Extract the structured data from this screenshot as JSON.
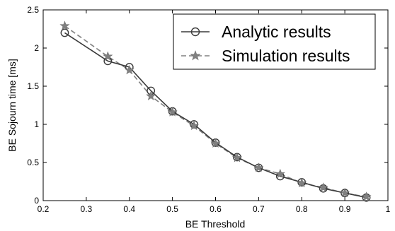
{
  "chart_data": {
    "type": "line",
    "xlabel": "BE Threshold",
    "ylabel": "BE Sojourn time [ms]",
    "xlim": [
      0.2,
      1.0
    ],
    "ylim": [
      0,
      2.5
    ],
    "xticks": [
      "0.2",
      "0.3",
      "0.4",
      "0.5",
      "0.6",
      "0.7",
      "0.8",
      "0.9",
      "1"
    ],
    "yticks": [
      "0",
      "0.5",
      "1",
      "1.5",
      "2",
      "2.5"
    ],
    "grid": false,
    "legend_position": "top-right",
    "series": [
      {
        "name": "Analytic results",
        "line_style": "solid",
        "marker": "circle",
        "color": "#3a3a3a",
        "x": [
          0.25,
          0.35,
          0.4,
          0.45,
          0.5,
          0.55,
          0.6,
          0.65,
          0.7,
          0.75,
          0.8,
          0.85,
          0.9,
          0.95
        ],
        "y": [
          2.2,
          1.83,
          1.75,
          1.44,
          1.17,
          1.0,
          0.76,
          0.57,
          0.43,
          0.32,
          0.24,
          0.16,
          0.1,
          0.04
        ]
      },
      {
        "name": "Simulation results",
        "line_style": "dashed",
        "marker": "star",
        "color": "#808080",
        "x": [
          0.25,
          0.35,
          0.4,
          0.45,
          0.5,
          0.55,
          0.6,
          0.65,
          0.7,
          0.75,
          0.8,
          0.85,
          0.9,
          0.95
        ],
        "y": [
          2.29,
          1.89,
          1.71,
          1.37,
          1.16,
          0.98,
          0.75,
          0.56,
          0.43,
          0.35,
          0.23,
          0.17,
          0.1,
          0.05
        ]
      }
    ]
  }
}
